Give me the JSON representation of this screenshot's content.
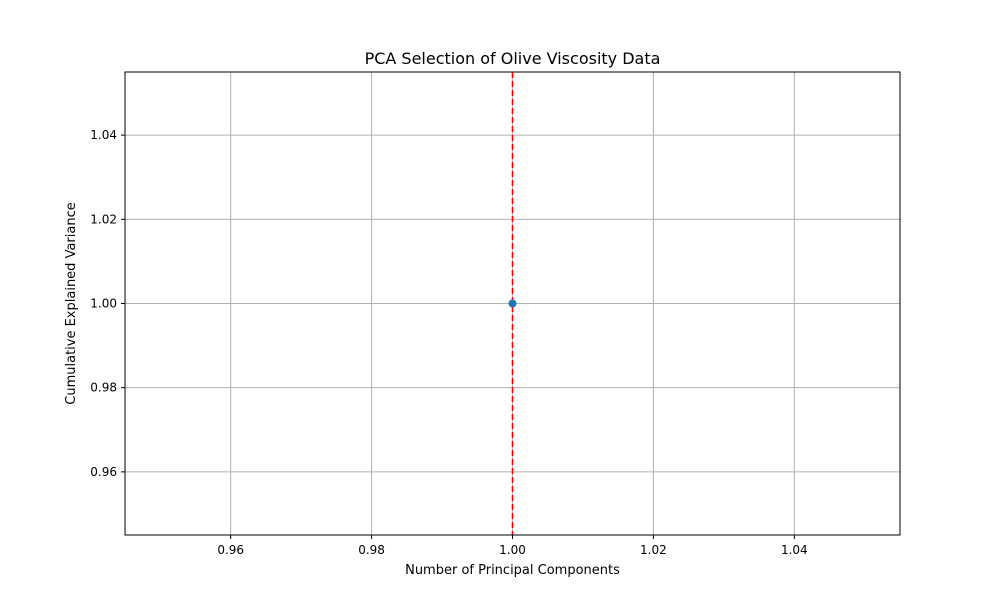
{
  "chart_data": {
    "type": "scatter",
    "title": "PCA Selection of Olive Viscosity Data",
    "xlabel": "Number of Principal Components",
    "ylabel": "Cumulative Explained Variance",
    "xlim": [
      0.945,
      1.055
    ],
    "ylim": [
      0.945,
      1.055
    ],
    "x_ticks": [
      0.96,
      0.98,
      1.0,
      1.02,
      1.04
    ],
    "x_tick_labels": [
      "0.96",
      "0.98",
      "1.00",
      "1.02",
      "1.04"
    ],
    "y_ticks": [
      0.96,
      0.98,
      1.0,
      1.02,
      1.04
    ],
    "y_tick_labels": [
      "0.96",
      "0.98",
      "1.00",
      "1.02",
      "1.04"
    ],
    "grid": true,
    "series": [
      {
        "x": [
          1
        ],
        "y": [
          1.0
        ],
        "color": "#1f77b4",
        "marker": "circle"
      }
    ],
    "vertical_line": {
      "x": 1,
      "color": "#ff0000",
      "style": "dashed"
    }
  }
}
